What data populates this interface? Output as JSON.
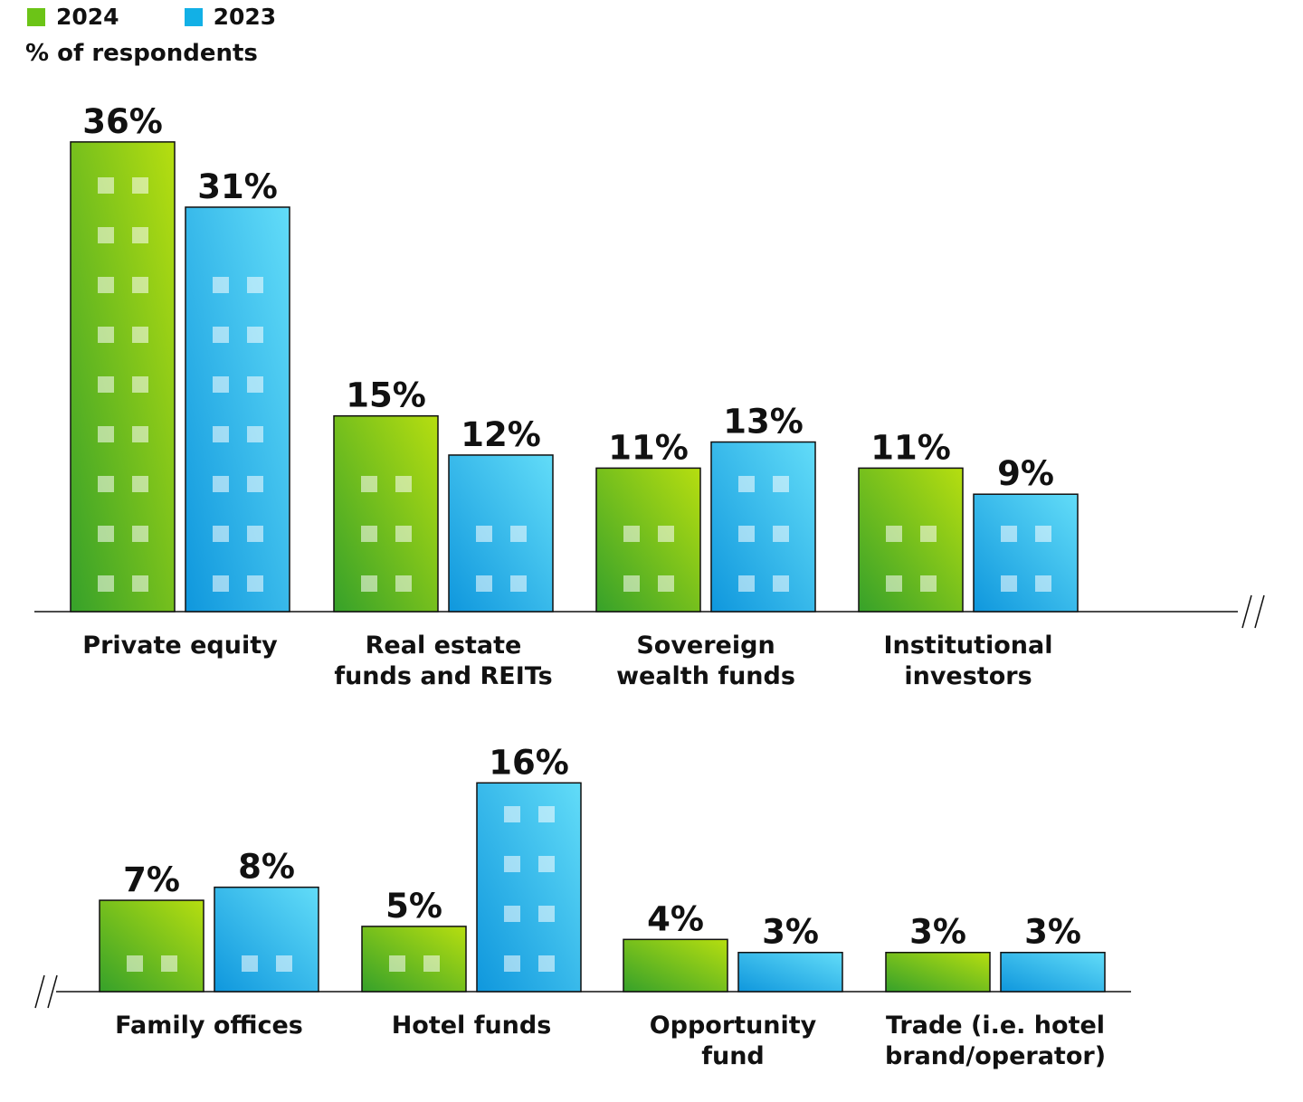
{
  "legend": {
    "items": [
      {
        "label": "2024",
        "color": "#7cc61e"
      },
      {
        "label": "2023",
        "color": "#1bb1e4"
      }
    ]
  },
  "subtitle": "% of respondents",
  "chart_data": [
    {
      "type": "bar",
      "categories": [
        "Private equity",
        "Real estate funds and REITs",
        "Sovereign wealth funds",
        "Institutional investors"
      ],
      "category_lines": [
        [
          "Private equity"
        ],
        [
          "Real estate",
          "funds and REITs"
        ],
        [
          "Sovereign",
          "wealth funds"
        ],
        [
          "Institutional",
          "investors"
        ]
      ],
      "series": [
        {
          "name": "2024",
          "values": [
            36,
            15,
            11,
            11
          ]
        },
        {
          "name": "2023",
          "values": [
            31,
            12,
            13,
            9
          ]
        }
      ],
      "value_labels": [
        [
          "36%",
          "15%",
          "11%",
          "11%"
        ],
        [
          "31%",
          "12%",
          "13%",
          "9%"
        ]
      ],
      "ylabel": "% of respondents",
      "axis_break": "right"
    },
    {
      "type": "bar",
      "categories": [
        "Family offices",
        "Hotel funds",
        "Opportunity fund",
        "Trade (i.e. hotel brand/operator)"
      ],
      "category_lines": [
        [
          "Family offices"
        ],
        [
          "Hotel funds"
        ],
        [
          "Opportunity",
          "fund"
        ],
        [
          "Trade (i.e. hotel",
          "brand/operator)"
        ]
      ],
      "series": [
        {
          "name": "2024",
          "values": [
            7,
            5,
            4,
            3
          ]
        },
        {
          "name": "2023",
          "values": [
            8,
            16,
            3,
            3
          ]
        }
      ],
      "value_labels": [
        [
          "7%",
          "5%",
          "4%",
          "3%"
        ],
        [
          "8%",
          "16%",
          "3%",
          "3%"
        ]
      ],
      "ylabel": "% of respondents",
      "axis_break": "left"
    }
  ],
  "colors": {
    "green_light": "#b2dc12",
    "green_dark": "#3aa428",
    "blue_light": "#5fdaf7",
    "blue_dark": "#129ce0",
    "window": "#ffffff"
  }
}
